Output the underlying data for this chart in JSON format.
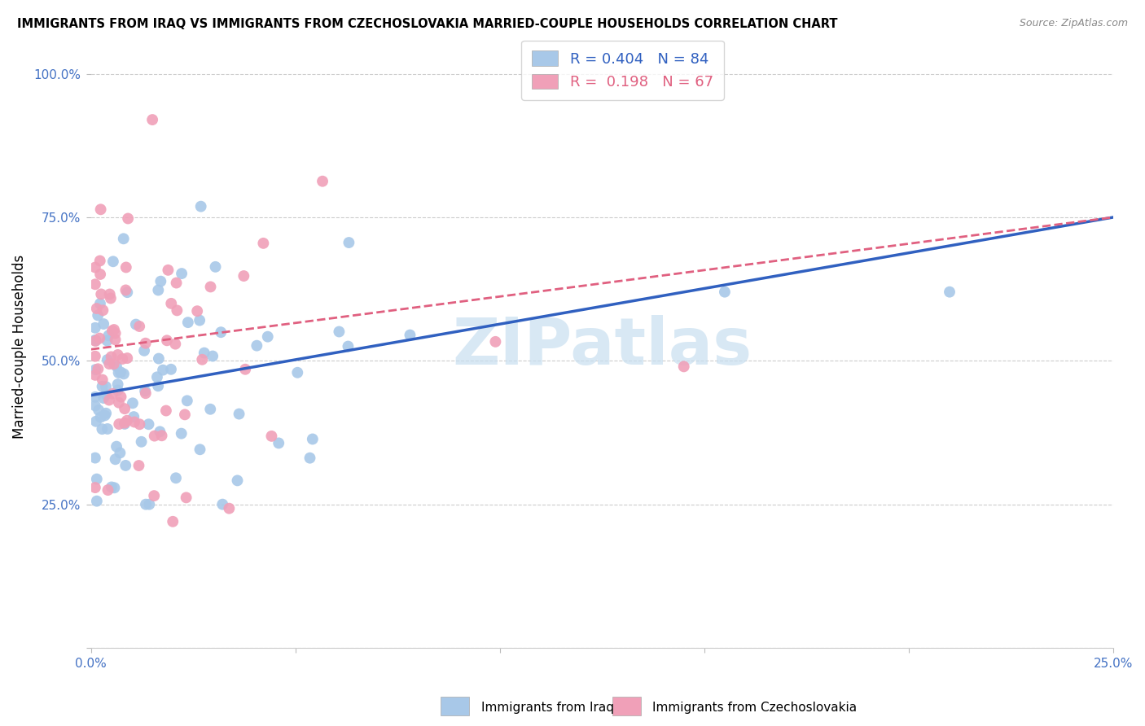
{
  "title": "IMMIGRANTS FROM IRAQ VS IMMIGRANTS FROM CZECHOSLOVAKIA MARRIED-COUPLE HOUSEHOLDS CORRELATION CHART",
  "source": "Source: ZipAtlas.com",
  "ylabel": "Married-couple Households",
  "xlabel_iraq": "Immigrants from Iraq",
  "xlabel_czech": "Immigrants from Czechoslovakia",
  "iraq_R": 0.404,
  "iraq_N": 84,
  "czech_R": 0.198,
  "czech_N": 67,
  "iraq_color": "#a8c8e8",
  "czech_color": "#f0a0b8",
  "iraq_line_color": "#3060c0",
  "czech_line_color": "#e06080",
  "iraq_line_style": "solid",
  "czech_line_style": "dashed",
  "xmin": 0.0,
  "xmax": 0.25,
  "ymin": 0.0,
  "ymax": 1.0,
  "watermark": "ZIPatlas",
  "watermark_color": "#c8dff0",
  "background_color": "#ffffff",
  "grid_color": "#cccccc",
  "tick_color": "#4472c4",
  "title_color": "#000000",
  "source_color": "#888888",
  "ylabel_color": "#000000",
  "iraq_line_intercept": 0.44,
  "iraq_line_slope": 1.24,
  "czech_line_intercept": 0.52,
  "czech_line_slope": 0.92
}
